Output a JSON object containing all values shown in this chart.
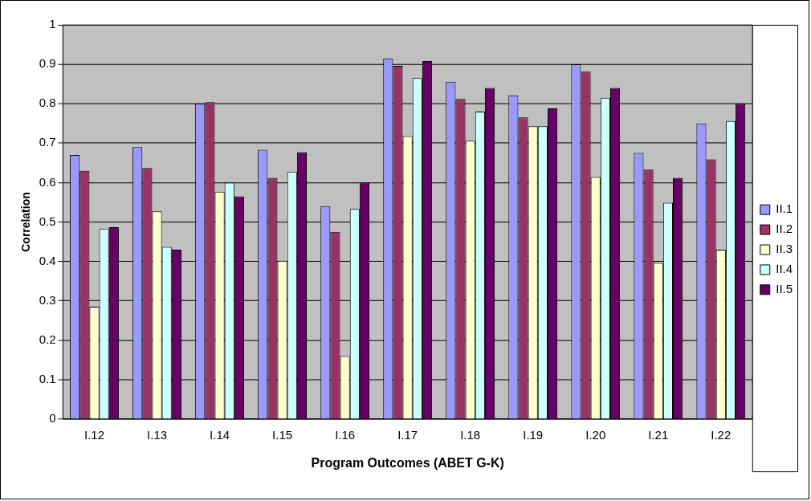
{
  "chart_data": {
    "type": "bar",
    "xlabel": "Program Outcomes (ABET G-K)",
    "ylabel": "Correlation",
    "categories": [
      "I.12",
      "I.13",
      "I.14",
      "I.15",
      "I.16",
      "I.17",
      "I.18",
      "I.19",
      "I.20",
      "I.21",
      "I.22"
    ],
    "series": [
      {
        "name": "II.1",
        "color": "#9999ff",
        "values": [
          0.67,
          0.69,
          0.8,
          0.683,
          0.54,
          0.915,
          0.856,
          0.821,
          0.9,
          0.675,
          0.75
        ]
      },
      {
        "name": "II.2",
        "color": "#993366",
        "values": [
          0.63,
          0.637,
          0.804,
          0.612,
          0.475,
          0.896,
          0.812,
          0.765,
          0.881,
          0.633,
          0.659
        ]
      },
      {
        "name": "II.3",
        "color": "#ffffcc",
        "values": [
          0.285,
          0.527,
          0.577,
          0.402,
          0.16,
          0.718,
          0.706,
          0.743,
          0.614,
          0.396,
          0.43
        ]
      },
      {
        "name": "II.4",
        "color": "#ccffff",
        "values": [
          0.483,
          0.437,
          0.6,
          0.628,
          0.533,
          0.865,
          0.78,
          0.743,
          0.815,
          0.549,
          0.756
        ]
      },
      {
        "name": "II.5",
        "color": "#660066",
        "values": [
          0.487,
          0.43,
          0.565,
          0.677,
          0.6,
          0.908,
          0.84,
          0.788,
          0.84,
          0.612,
          0.8
        ]
      }
    ],
    "ylim": [
      0,
      1
    ],
    "yticks": [
      0,
      0.1,
      0.2,
      0.3,
      0.4,
      0.5,
      0.6,
      0.7,
      0.8,
      0.9,
      1
    ],
    "grid": "y",
    "legend": "right"
  }
}
